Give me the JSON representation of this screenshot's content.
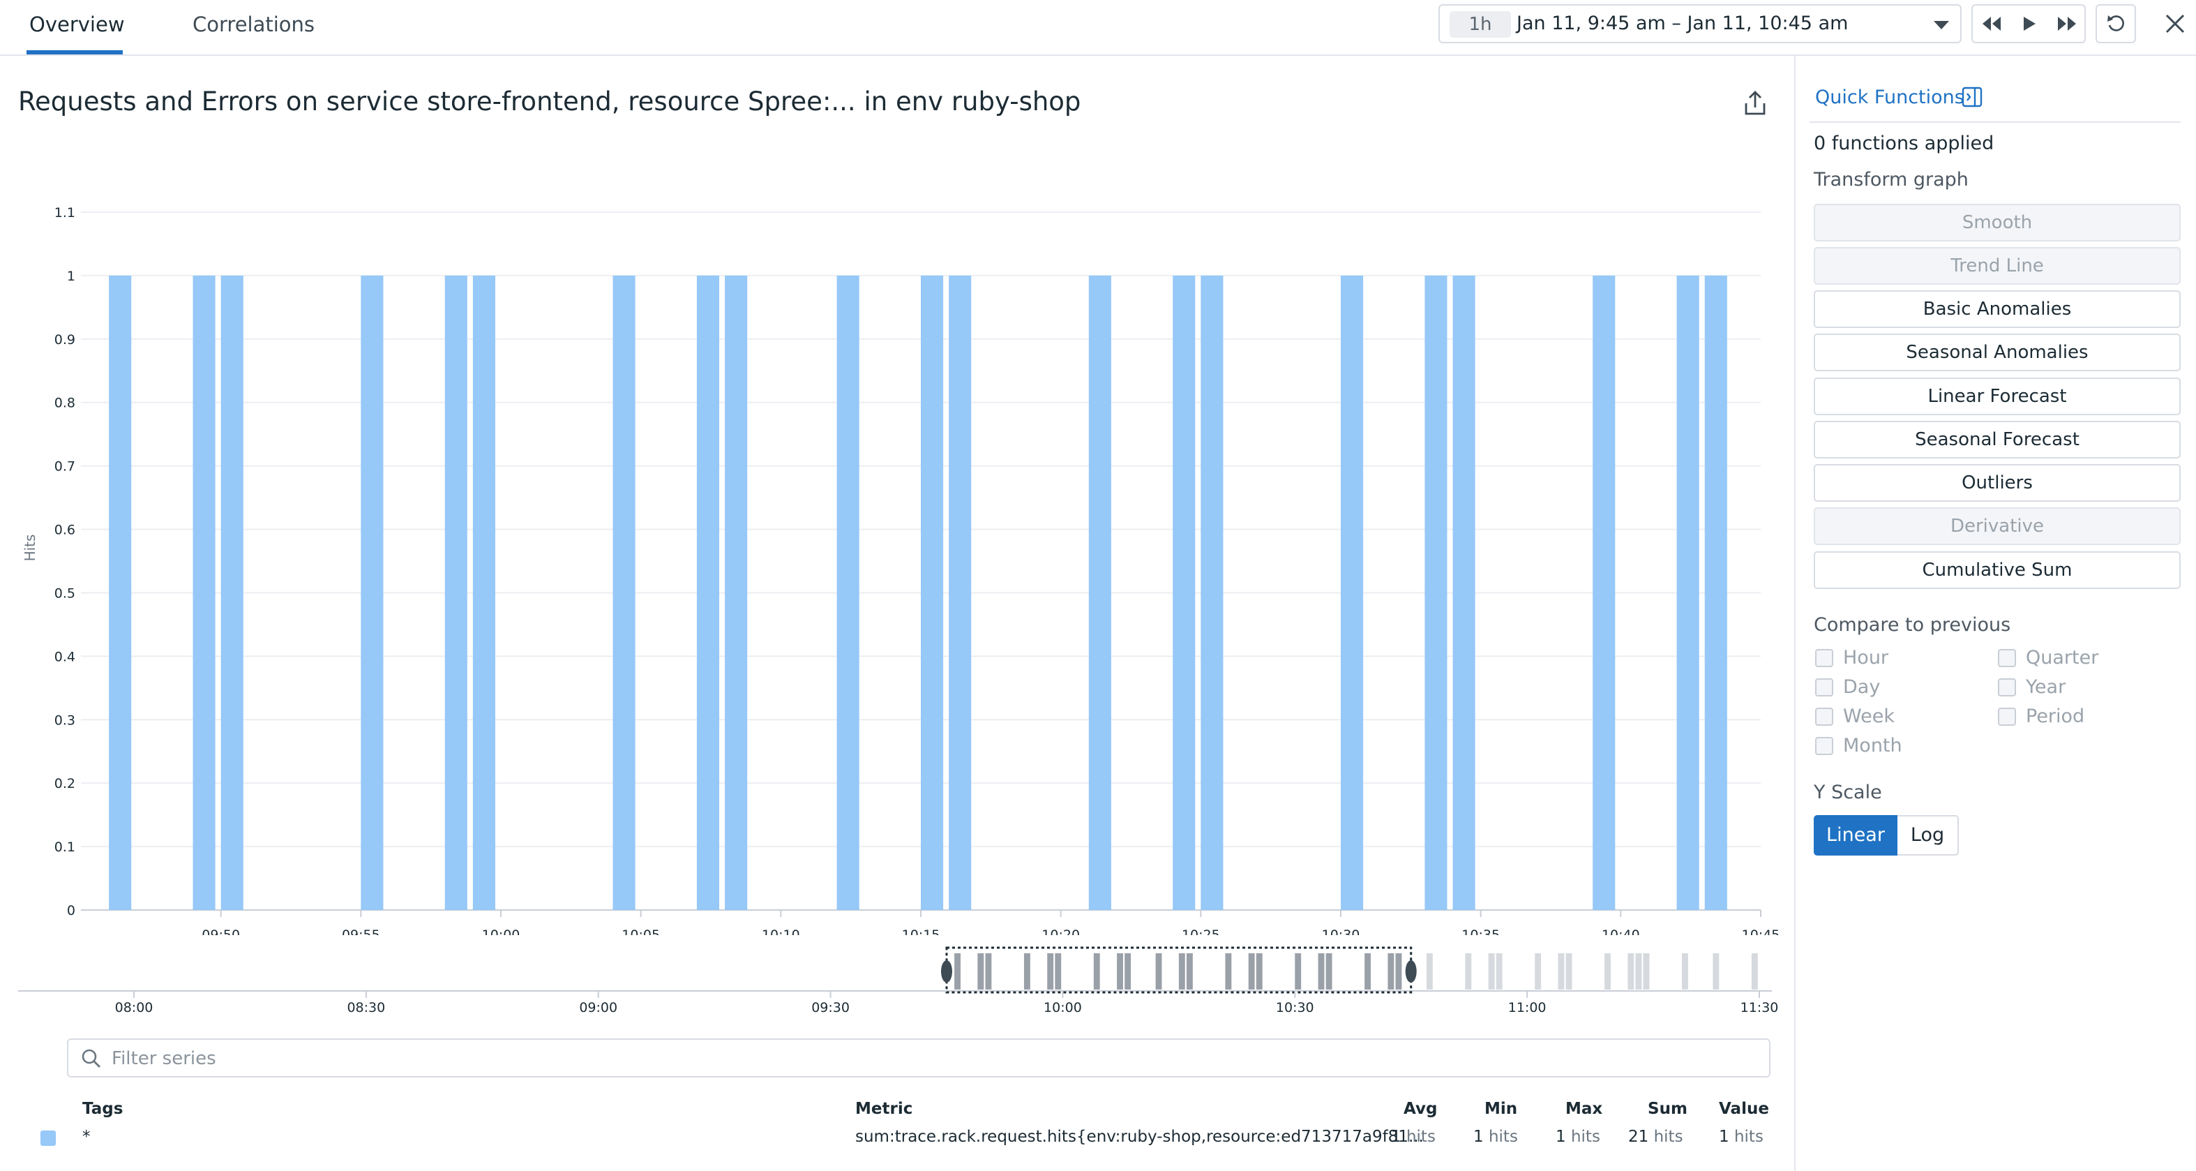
{
  "tabs": [
    {
      "label": "Overview",
      "active": true
    },
    {
      "label": "Correlations",
      "active": false
    }
  ],
  "time_picker": {
    "range_badge": "1h",
    "range_text": "Jan 11, 9:45 am – Jan 11, 10:45 am"
  },
  "icons": {
    "rewind": "rewind-icon",
    "play": "play-icon",
    "forward": "fast-forward-icon",
    "refresh": "refresh-icon",
    "close": "close-icon",
    "export": "export-icon",
    "search": "search-icon",
    "quick_functions": "panel-toggle-icon"
  },
  "graph": {
    "title": "Requests and Errors on service store-frontend, resource Spree:... in env ruby-shop"
  },
  "chart_data": {
    "type": "bar",
    "ylabel": "Hits",
    "ylim": [
      0,
      1.1
    ],
    "yticks": [
      "0",
      "0.1",
      "0.2",
      "0.3",
      "0.4",
      "0.5",
      "0.6",
      "0.7",
      "0.8",
      "0.9",
      "1",
      "1.1"
    ],
    "x_start_minute": "09:45",
    "xticks": [
      "09:50",
      "09:55",
      "10:00",
      "10:05",
      "10:10",
      "10:15",
      "10:20",
      "10:25",
      "10:30",
      "10:35",
      "10:40",
      "10:45"
    ],
    "x": [
      "09:46",
      "09:49",
      "09:50",
      "09:55",
      "09:58",
      "09:59",
      "10:04",
      "10:07",
      "10:08",
      "10:12",
      "10:15",
      "10:16",
      "10:21",
      "10:24",
      "10:25",
      "10:30",
      "10:33",
      "10:34",
      "10:39",
      "10:42",
      "10:43"
    ],
    "values": [
      1,
      1,
      1,
      1,
      1,
      1,
      1,
      1,
      1,
      1,
      1,
      1,
      1,
      1,
      1,
      1,
      1,
      1,
      1,
      1,
      1
    ],
    "bar_color": "#96c8f8",
    "grid": true
  },
  "overview_data": {
    "xticks": [
      "08:00",
      "08:30",
      "09:00",
      "09:30",
      "10:00",
      "10:30",
      "11:00",
      "11:30"
    ],
    "selection": [
      "09:45",
      "10:45"
    ],
    "bars_in_selection": [
      "09:46",
      "09:49",
      "09:50",
      "09:55",
      "09:58",
      "09:59",
      "10:04",
      "10:07",
      "10:08",
      "10:12",
      "10:15",
      "10:16",
      "10:21",
      "10:24",
      "10:25",
      "10:30",
      "10:33",
      "10:34",
      "10:39",
      "10:42",
      "10:43"
    ],
    "bars_after_selection": [
      "10:47",
      "10:52",
      "10:55",
      "10:56",
      "11:01",
      "11:04",
      "11:05",
      "11:10",
      "11:13",
      "11:14",
      "11:15",
      "11:20",
      "11:24",
      "11:29"
    ],
    "color_in_selection": "#9aa0a8",
    "color_outside": "#d6d9de"
  },
  "filter": {
    "placeholder": "Filter series"
  },
  "legend": {
    "headers": {
      "tags": "Tags",
      "metric": "Metric",
      "avg": "Avg",
      "min": "Min",
      "max": "Max",
      "sum": "Sum",
      "value": "Value"
    },
    "rows": [
      {
        "tags": "*",
        "metric": "sum:trace.rack.request.hits{env:ruby-shop,resource:ed713717a9f81...",
        "avg": "1",
        "min": "1",
        "max": "1",
        "sum": "21",
        "value": "1",
        "unit": "hits",
        "color": "#96c8f8"
      }
    ]
  },
  "quick_functions": {
    "title": "Quick Functions",
    "applied": "0 functions applied",
    "transform_label": "Transform graph",
    "buttons": [
      {
        "label": "Smooth",
        "disabled": true
      },
      {
        "label": "Trend Line",
        "disabled": true
      },
      {
        "label": "Basic Anomalies",
        "disabled": false
      },
      {
        "label": "Seasonal Anomalies",
        "disabled": false
      },
      {
        "label": "Linear Forecast",
        "disabled": false
      },
      {
        "label": "Seasonal Forecast",
        "disabled": false
      },
      {
        "label": "Outliers",
        "disabled": false
      },
      {
        "label": "Derivative",
        "disabled": true
      },
      {
        "label": "Cumulative Sum",
        "disabled": false
      }
    ],
    "compare_label": "Compare to previous",
    "compare_options": [
      "Hour",
      "Day",
      "Week",
      "Month",
      "Quarter",
      "Year",
      "Period"
    ],
    "yscale_label": "Y Scale",
    "yscale_options": [
      "Linear",
      "Log"
    ],
    "yscale_selected": "Linear"
  }
}
